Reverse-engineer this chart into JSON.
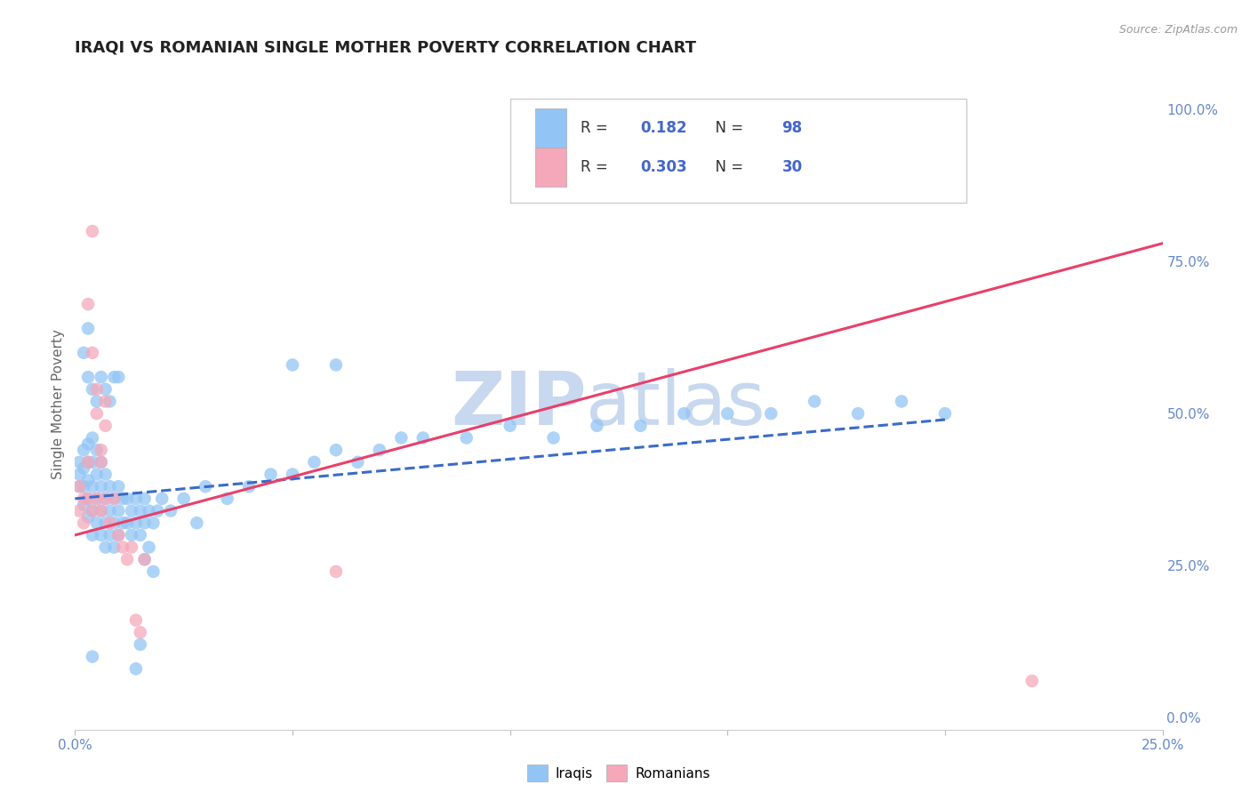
{
  "title": "IRAQI VS ROMANIAN SINGLE MOTHER POVERTY CORRELATION CHART",
  "source_text": "Source: ZipAtlas.com",
  "ylabel": "Single Mother Poverty",
  "xlim": [
    0.0,
    0.25
  ],
  "ylim": [
    -0.02,
    1.05
  ],
  "right_yticks": [
    0.0,
    0.25,
    0.5,
    0.75,
    1.0
  ],
  "right_yticklabels": [
    "0.0%",
    "25.0%",
    "50.0%",
    "75.0%",
    "100.0%"
  ],
  "xticks": [
    0.0,
    0.05,
    0.1,
    0.15,
    0.2,
    0.25
  ],
  "xticklabels": [
    "0.0%",
    "",
    "",
    "",
    "",
    "25.0%"
  ],
  "legend_R1_val": "0.182",
  "legend_N1_val": "98",
  "legend_R2_val": "0.303",
  "legend_N2_val": "30",
  "iraqis_color": "#92C5F5",
  "romanians_color": "#F5A8BA",
  "iraqis_line_color": "#3A6BC9",
  "romanians_line_color": "#E8406A",
  "watermark_text": "ZIP",
  "watermark_text2": "atlas",
  "watermark_color": "#C8D8EE",
  "iraqis_label": "Iraqis",
  "romanians_label": "Romanians",
  "iraqis_x": [
    0.001,
    0.001,
    0.001,
    0.002,
    0.002,
    0.002,
    0.002,
    0.003,
    0.003,
    0.003,
    0.003,
    0.003,
    0.004,
    0.004,
    0.004,
    0.004,
    0.004,
    0.005,
    0.005,
    0.005,
    0.005,
    0.006,
    0.006,
    0.006,
    0.006,
    0.007,
    0.007,
    0.007,
    0.007,
    0.008,
    0.008,
    0.008,
    0.009,
    0.009,
    0.009,
    0.01,
    0.01,
    0.01,
    0.011,
    0.011,
    0.012,
    0.012,
    0.013,
    0.013,
    0.014,
    0.014,
    0.015,
    0.015,
    0.016,
    0.016,
    0.017,
    0.018,
    0.019,
    0.02,
    0.022,
    0.025,
    0.028,
    0.03,
    0.035,
    0.04,
    0.045,
    0.05,
    0.055,
    0.06,
    0.065,
    0.07,
    0.075,
    0.08,
    0.09,
    0.1,
    0.11,
    0.12,
    0.13,
    0.14,
    0.15,
    0.16,
    0.17,
    0.18,
    0.19,
    0.2,
    0.003,
    0.004,
    0.005,
    0.006,
    0.007,
    0.008,
    0.009,
    0.01,
    0.05,
    0.06,
    0.002,
    0.003,
    0.004,
    0.014,
    0.015,
    0.016,
    0.017,
    0.018
  ],
  "iraqis_y": [
    0.38,
    0.42,
    0.4,
    0.35,
    0.38,
    0.41,
    0.44,
    0.33,
    0.36,
    0.39,
    0.42,
    0.45,
    0.3,
    0.34,
    0.38,
    0.42,
    0.46,
    0.32,
    0.36,
    0.4,
    0.44,
    0.3,
    0.34,
    0.38,
    0.42,
    0.28,
    0.32,
    0.36,
    0.4,
    0.3,
    0.34,
    0.38,
    0.28,
    0.32,
    0.36,
    0.3,
    0.34,
    0.38,
    0.32,
    0.36,
    0.32,
    0.36,
    0.3,
    0.34,
    0.32,
    0.36,
    0.3,
    0.34,
    0.32,
    0.36,
    0.34,
    0.32,
    0.34,
    0.36,
    0.34,
    0.36,
    0.32,
    0.38,
    0.36,
    0.38,
    0.4,
    0.4,
    0.42,
    0.44,
    0.42,
    0.44,
    0.46,
    0.46,
    0.46,
    0.48,
    0.46,
    0.48,
    0.48,
    0.5,
    0.5,
    0.5,
    0.52,
    0.5,
    0.52,
    0.5,
    0.56,
    0.54,
    0.52,
    0.56,
    0.54,
    0.52,
    0.56,
    0.56,
    0.58,
    0.58,
    0.6,
    0.64,
    0.1,
    0.08,
    0.12,
    0.26,
    0.28,
    0.24
  ],
  "romanians_x": [
    0.001,
    0.001,
    0.002,
    0.002,
    0.003,
    0.003,
    0.004,
    0.004,
    0.005,
    0.005,
    0.006,
    0.006,
    0.007,
    0.007,
    0.008,
    0.009,
    0.01,
    0.011,
    0.012,
    0.013,
    0.014,
    0.015,
    0.016,
    0.003,
    0.004,
    0.005,
    0.006,
    0.007,
    0.06,
    0.22
  ],
  "romanians_y": [
    0.34,
    0.38,
    0.32,
    0.36,
    0.36,
    0.42,
    0.34,
    0.8,
    0.36,
    0.5,
    0.34,
    0.42,
    0.36,
    0.52,
    0.32,
    0.36,
    0.3,
    0.28,
    0.26,
    0.28,
    0.16,
    0.14,
    0.26,
    0.68,
    0.6,
    0.54,
    0.44,
    0.48,
    0.24,
    0.06
  ],
  "iraqis_trend_x": [
    0.0,
    0.2
  ],
  "iraqis_trend_y": [
    0.36,
    0.49
  ],
  "romanians_trend_x": [
    0.0,
    0.25
  ],
  "romanians_trend_y": [
    0.3,
    0.78
  ],
  "background_color": "#FFFFFF",
  "grid_color": "#DDDDDD",
  "legend_text_color": "#333333",
  "legend_RN_color": "#4466CC",
  "tick_color": "#6688CC"
}
